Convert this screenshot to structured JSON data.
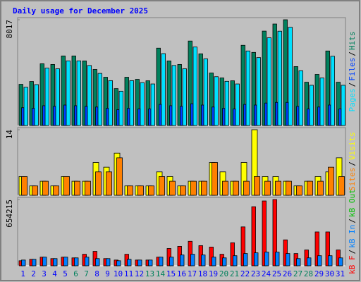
{
  "chart_data": [
    {
      "type": "bar",
      "title": "Daily usage for December 2025",
      "title_color": "#0000ff",
      "ylim": [
        0,
        8017
      ],
      "yticks": [
        8017
      ],
      "legend_separator": "/",
      "legend_reverse": true,
      "series": [
        {
          "name": "Hits",
          "color": "#00805c",
          "values": [
            3121,
            3336,
            4681,
            4627,
            5273,
            5273,
            4896,
            4251,
            3659,
            2798,
            3659,
            3497,
            3390,
            5865,
            4896,
            4627,
            6403,
            5434,
            3982,
            3605,
            3390,
            6080,
            5542,
            7156,
            7694,
            8017,
            4466,
            3282,
            3874,
            5650,
            3282
          ]
        },
        {
          "name": "Files",
          "color": "#0040ff",
          "values": [
            1350,
            1300,
            1500,
            1450,
            1550,
            1500,
            1450,
            1400,
            1300,
            1200,
            1300,
            1250,
            1250,
            1600,
            1500,
            1450,
            1650,
            1550,
            1400,
            1300,
            1250,
            1600,
            1550,
            1700,
            1750,
            1750,
            1450,
            1250,
            1400,
            1550,
            1250
          ]
        },
        {
          "name": "Pages",
          "color": "#00e0ff",
          "values": [
            2900,
            3100,
            4350,
            4300,
            4900,
            4900,
            4550,
            3950,
            3400,
            2600,
            3400,
            3250,
            3150,
            5450,
            4550,
            4300,
            5950,
            5050,
            3700,
            3350,
            3150,
            5650,
            5150,
            6650,
            7150,
            7450,
            4150,
            3050,
            3600,
            5250,
            3050
          ]
        }
      ]
    },
    {
      "type": "bar",
      "ylim": [
        0,
        14
      ],
      "yticks": [
        14
      ],
      "legend_separator": "/",
      "legend_reverse": true,
      "series": [
        {
          "name": "Visits",
          "color": "#ffff00",
          "values": [
            4,
            2,
            3,
            2,
            4,
            3,
            3,
            7,
            6,
            9,
            2,
            2,
            2,
            5,
            4,
            2,
            3,
            3,
            7,
            5,
            3,
            7,
            14,
            4,
            4,
            3,
            2,
            3,
            4,
            5,
            8
          ]
        },
        {
          "name": "Sites",
          "color": "#ff8000",
          "values": [
            4,
            2,
            3,
            2,
            4,
            3,
            3,
            5,
            5,
            8,
            2,
            2,
            2,
            4,
            3,
            2,
            3,
            3,
            7,
            3,
            3,
            3,
            4,
            3,
            3,
            3,
            2,
            3,
            3,
            6,
            4
          ]
        }
      ]
    },
    {
      "type": "bar",
      "ylim": [
        0,
        654215
      ],
      "yticks": [
        654215
      ],
      "legend_separator": "/",
      "legend_reverse": false,
      "categories": [
        "1",
        "2",
        "3",
        "4",
        "5",
        "6",
        "7",
        "8",
        "9",
        "10",
        "11",
        "12",
        "13",
        "14",
        "15",
        "16",
        "17",
        "18",
        "19",
        "20",
        "21",
        "22",
        "23",
        "24",
        "25",
        "26",
        "27",
        "28",
        "29",
        "30",
        "31"
      ],
      "category_colors": [
        "#0000ff",
        "#0000ff",
        "#0000ff",
        "#0000ff",
        "#0000ff",
        "#00805c",
        "#00805c",
        "#0000ff",
        "#0000ff",
        "#0000ff",
        "#0000ff",
        "#0000ff",
        "#00805c",
        "#00805c",
        "#0000ff",
        "#0000ff",
        "#0000ff",
        "#0000ff",
        "#0000ff",
        "#00805c",
        "#00805c",
        "#0000ff",
        "#0000ff",
        "#0000ff",
        "#0000ff",
        "#0000ff",
        "#00805c",
        "#00805c",
        "#0000ff",
        "#0000ff",
        "#0000ff"
      ],
      "series": [
        {
          "name": "kB F",
          "color": "#ff0000",
          "values": [
            49777,
            64000,
            85332,
            71110,
            85332,
            78221,
            113776,
            142220,
            71110,
            56888,
            113776,
            56888,
            56888,
            85332,
            170664,
            191997,
            241774,
            199108,
            184886,
            113776,
            227552,
            383994,
            583102,
            639990,
            654215,
            255996,
            120887,
            156442,
            334217,
            334217,
            156442
          ]
        },
        {
          "name": "kB In",
          "color": "#0080ff",
          "values": [
            56888,
            64000,
            85332,
            71110,
            85332,
            78221,
            85332,
            71110,
            71110,
            49777,
            64000,
            56888,
            56888,
            85332,
            85332,
            106665,
            113776,
            106665,
            85332,
            78221,
            99554,
            120887,
            127998,
            135109,
            135109,
            120887,
            71110,
            78221,
            99554,
            99554,
            78221
          ]
        },
        {
          "name": "kB Out",
          "color": "#00c000",
          "values": [
            0,
            0,
            0,
            0,
            0,
            0,
            0,
            0,
            0,
            0,
            0,
            0,
            0,
            0,
            0,
            0,
            0,
            0,
            0,
            0,
            0,
            0,
            0,
            0,
            0,
            0,
            0,
            0,
            0,
            0,
            0
          ]
        }
      ]
    }
  ]
}
